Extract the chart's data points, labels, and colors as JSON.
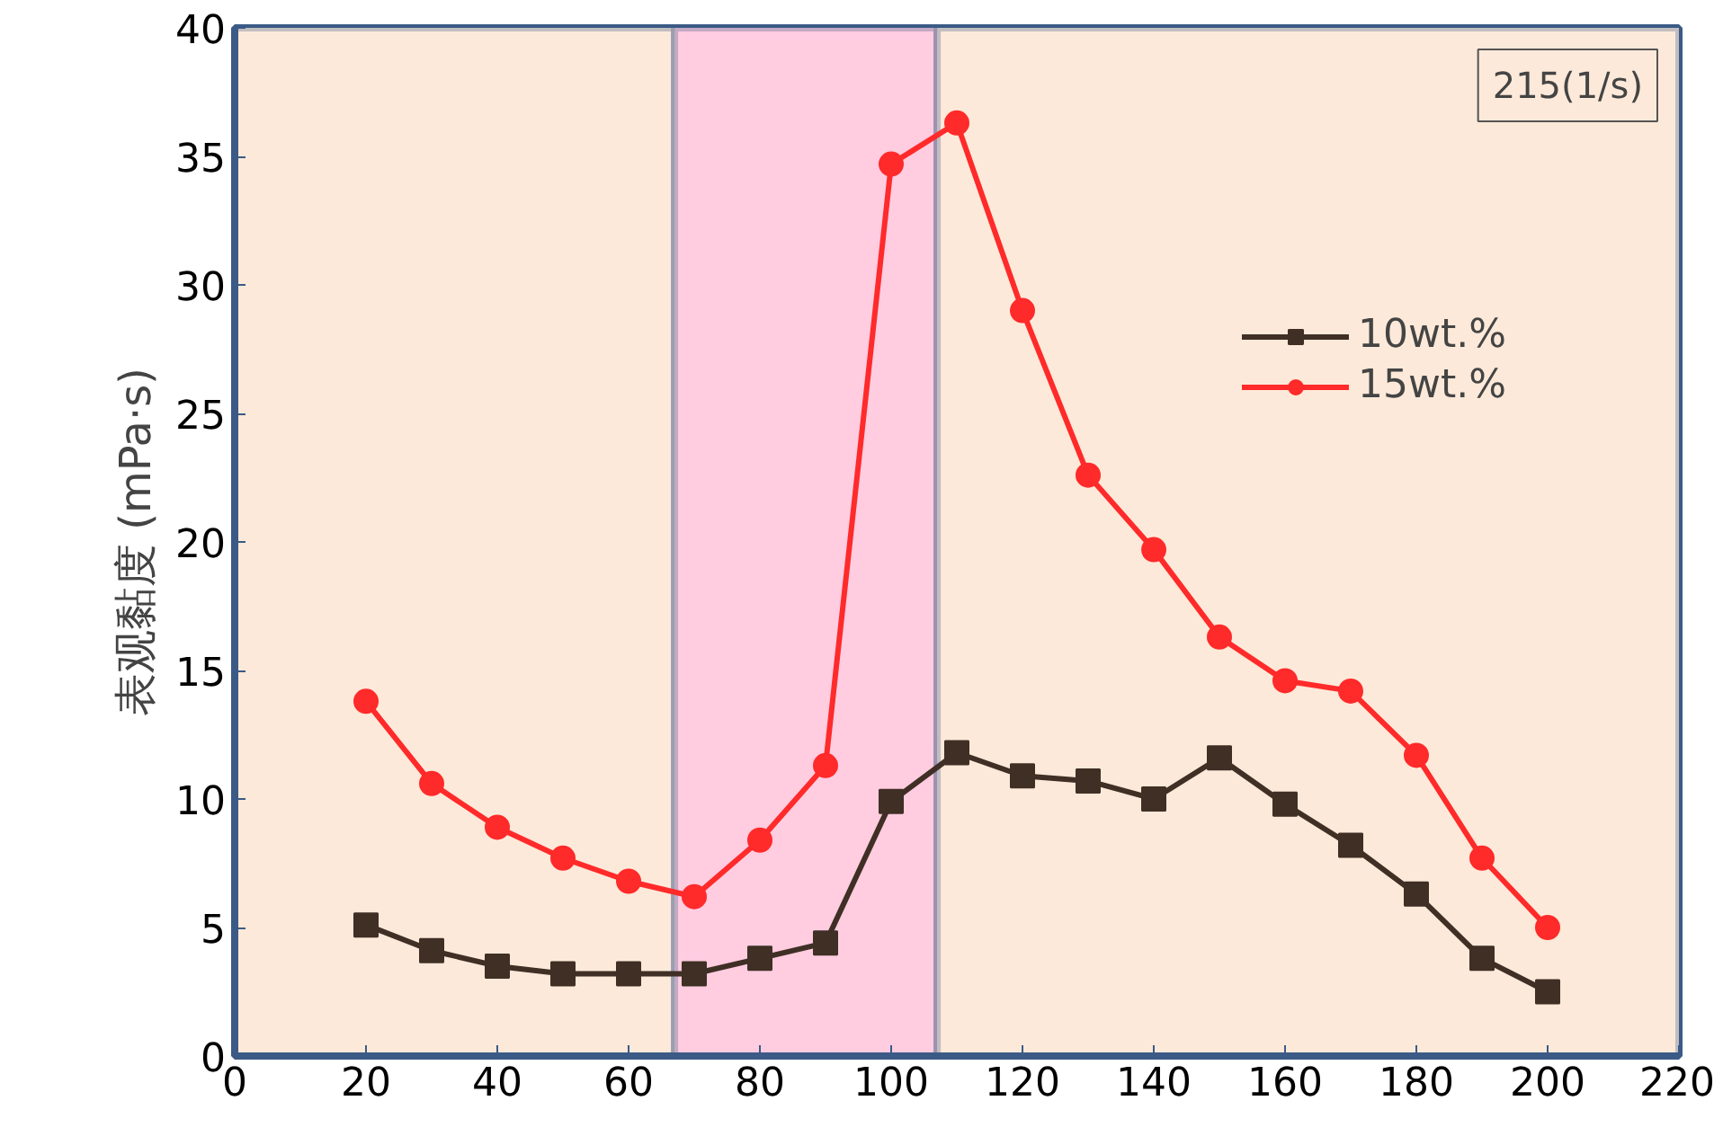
{
  "chart_data": {
    "type": "line",
    "ylabel": "表观黏度 (mPa·s)",
    "x": [
      20,
      30,
      40,
      50,
      60,
      70,
      80,
      90,
      100,
      110,
      120,
      130,
      140,
      150,
      160,
      170,
      180,
      190,
      200
    ],
    "series": [
      {
        "name": "10wt.%",
        "color": "#3f2f25",
        "marker": "square",
        "values": [
          5.1,
          4.1,
          3.5,
          3.2,
          3.2,
          3.2,
          3.8,
          4.4,
          9.9,
          11.8,
          10.9,
          10.7,
          10.0,
          11.6,
          9.8,
          8.2,
          6.3,
          3.8,
          2.5
        ]
      },
      {
        "name": "15wt.%",
        "color": "#ff2a2a",
        "marker": "circle",
        "values": [
          13.8,
          10.6,
          8.9,
          7.7,
          6.8,
          6.2,
          8.4,
          11.3,
          34.7,
          36.3,
          29.0,
          22.6,
          19.7,
          16.3,
          14.6,
          14.2,
          11.7,
          7.7,
          5.0
        ]
      }
    ],
    "xlim": [
      0,
      220
    ],
    "xticks": [
      0,
      20,
      40,
      60,
      80,
      100,
      120,
      140,
      160,
      180,
      200,
      220
    ],
    "ylim": [
      0,
      40
    ],
    "yticks": [
      0,
      5,
      10,
      15,
      20,
      25,
      30,
      35,
      40
    ],
    "bands": [
      {
        "axis": "x",
        "from": 0,
        "to": 67,
        "color": "#fde9d9"
      },
      {
        "axis": "x",
        "from": 67,
        "to": 107,
        "color": "#ffcce0"
      },
      {
        "axis": "x",
        "from": 107,
        "to": 220,
        "color": "#fde9d9"
      }
    ],
    "annotations": [
      "215(1/s)"
    ],
    "legend": "right",
    "line_style": "solid"
  }
}
